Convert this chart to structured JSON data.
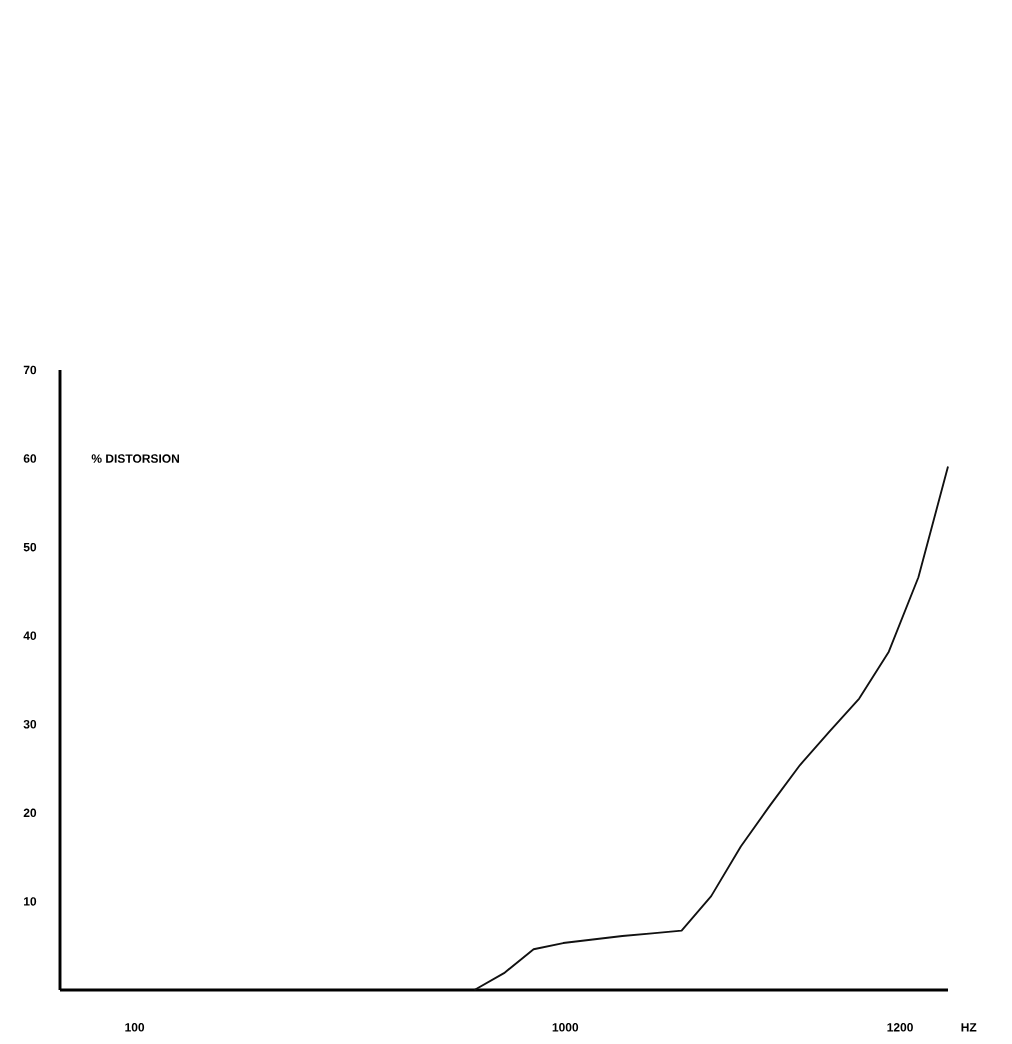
{
  "chart_data": {
    "type": "line",
    "ylabel": "% DISTORSION",
    "xlabel": "HZ",
    "annotations": [
      "100",
      "1000",
      "1200"
    ],
    "categories": [
      null,
      null,
      null,
      null,
      null,
      null,
      null,
      null,
      null,
      null,
      null,
      null,
      null,
      null,
      null,
      null,
      null,
      null,
      null,
      null,
      null,
      null,
      null,
      null,
      null,
      null,
      null,
      null,
      null,
      null,
      null
    ],
    "values": [
      null,
      null,
      null,
      null,
      null,
      null,
      null,
      null,
      null,
      null,
      null,
      null,
      null,
      null,
      0,
      1.9,
      4.6,
      5.3,
      5.7,
      6.1,
      6.4,
      6.7,
      10.6,
      16.2,
      20.9,
      25.4,
      29.2,
      32.9,
      38.2,
      46.6,
      59.1
    ],
    "color": "#111111",
    "ylim": [
      0,
      70
    ],
    "yticks": [
      10,
      20,
      30,
      40,
      50,
      60,
      70
    ],
    "grid": false,
    "marker": "none",
    "line_style": "solid"
  }
}
